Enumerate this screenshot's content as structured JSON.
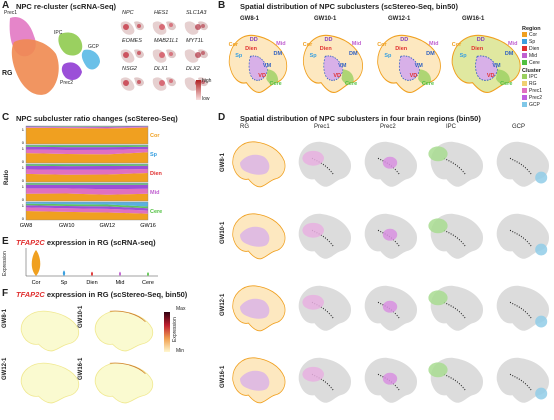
{
  "panels": {
    "A": {
      "letter": "A",
      "title": "NPC re-cluster (scRNA-Seq)",
      "clusters": [
        "Prec1",
        "RG",
        "IPC",
        "Prec2",
        "GCP"
      ],
      "genes": [
        "NPC",
        "HES1",
        "SLC1A3",
        "EOMES",
        "MAB21L1",
        "MYT1L",
        "NSG2",
        "DLX1",
        "DLX2"
      ],
      "scale_high": "high",
      "scale_low": "low"
    },
    "B": {
      "letter": "B",
      "title": "Spatial distribution of NPC subclusters (scStereo-Seq, bin50)",
      "stages": [
        "GW8-1",
        "GW10-1",
        "GW12-1",
        "GW16-1"
      ],
      "region_labels": [
        "DD",
        "Dien",
        "DM",
        "Mid",
        "VD",
        "VM",
        "Cor",
        "Sp",
        "Cere"
      ],
      "region_legend_title": "Region",
      "region_legend": [
        {
          "name": "Cor",
          "color": "#f0a020"
        },
        {
          "name": "Sp",
          "color": "#3aa0e0"
        },
        {
          "name": "Dien",
          "color": "#e03030"
        },
        {
          "name": "Mid",
          "color": "#c060d0"
        },
        {
          "name": "Cere",
          "color": "#50c040"
        }
      ],
      "cluster_legend_title": "Cluster",
      "cluster_legend": [
        {
          "name": "IPC",
          "color": "#9ad060"
        },
        {
          "name": "RG",
          "color": "#f0d070"
        },
        {
          "name": "Prec1",
          "color": "#e070c0"
        },
        {
          "name": "Prec2",
          "color": "#c060e0"
        },
        {
          "name": "GCP",
          "color": "#80c8e8"
        }
      ]
    },
    "C": {
      "letter": "C",
      "title": "NPC subcluster ratio changes (scStereo-Seq)",
      "ylabel": "Ratio"
    },
    "D": {
      "letter": "D",
      "title": "Spatial distribution of NPC subclusters in four brain regions (bin50)",
      "columns": [
        "RG",
        "Prec1",
        "Prec2",
        "IPC",
        "GCP"
      ],
      "rows": [
        "GW8-1",
        "GW10-1",
        "GW12-1",
        "GW16-1"
      ]
    },
    "E": {
      "letter": "E",
      "gene": "TFAP2C",
      "title_rest": " expression in RG (scRNA-seq)",
      "ylabel": "Expression"
    },
    "F": {
      "letter": "F",
      "gene": "TFAP2C",
      "title_rest": " expression in RG (scStereo-Seq, bin50)",
      "rows": [
        "GW8-1",
        "GW10-1",
        "GW12-1",
        "GW16-1"
      ],
      "scale_title": "Expression",
      "scale_max": "Max",
      "scale_min": "Min"
    }
  },
  "chart_data": [
    {
      "type": "area",
      "title": "NPC subcluster ratio changes (scStereo-Seq)",
      "ylabel": "Ratio",
      "categories": [
        "GW8",
        "GW10",
        "GW12",
        "GW16"
      ],
      "facets": [
        "Cor",
        "Sp",
        "Dien",
        "Mid",
        "Cere"
      ],
      "facet_colors": [
        "#f0a020",
        "#3aa0e0",
        "#e03030",
        "#c060d0",
        "#50c040"
      ],
      "ylim": [
        0,
        1
      ],
      "series": [
        {
          "name": "RG",
          "color": "#f0a020"
        },
        {
          "name": "Prec1",
          "color": "#e070c0"
        },
        {
          "name": "Prec2",
          "color": "#9b4fd8"
        },
        {
          "name": "IPC",
          "color": "#5fc060"
        },
        {
          "name": "GCP",
          "color": "#5ab0e0"
        }
      ],
      "facet_values": {
        "Cor": [
          [
            0.9,
            0.88,
            0.86,
            0.92
          ],
          [
            0.04,
            0.05,
            0.06,
            0.03
          ],
          [
            0.03,
            0.03,
            0.04,
            0.03
          ],
          [
            0.02,
            0.03,
            0.03,
            0.01
          ],
          [
            0.01,
            0.01,
            0.01,
            0.01
          ]
        ],
        "Sp": [
          [
            0.55,
            0.5,
            0.48,
            0.6
          ],
          [
            0.2,
            0.22,
            0.25,
            0.18
          ],
          [
            0.15,
            0.16,
            0.15,
            0.12
          ],
          [
            0.08,
            0.1,
            0.1,
            0.08
          ],
          [
            0.02,
            0.02,
            0.02,
            0.02
          ]
        ],
        "Dien": [
          [
            0.45,
            0.4,
            0.42,
            0.5
          ],
          [
            0.25,
            0.28,
            0.27,
            0.22
          ],
          [
            0.2,
            0.2,
            0.2,
            0.18
          ],
          [
            0.08,
            0.1,
            0.09,
            0.08
          ],
          [
            0.02,
            0.02,
            0.02,
            0.02
          ]
        ],
        "Mid": [
          [
            0.4,
            0.42,
            0.35,
            0.4
          ],
          [
            0.3,
            0.28,
            0.3,
            0.28
          ],
          [
            0.2,
            0.2,
            0.25,
            0.22
          ],
          [
            0.08,
            0.08,
            0.08,
            0.08
          ],
          [
            0.02,
            0.02,
            0.02,
            0.02
          ]
        ],
        "Cere": [
          [
            0.5,
            0.45,
            0.42,
            0.35
          ],
          [
            0.2,
            0.2,
            0.2,
            0.18
          ],
          [
            0.12,
            0.13,
            0.14,
            0.12
          ],
          [
            0.08,
            0.1,
            0.1,
            0.1
          ],
          [
            0.1,
            0.12,
            0.14,
            0.25
          ]
        ]
      }
    },
    {
      "type": "violin",
      "title": "TFAP2C expression in RG (scRNA-seq)",
      "ylabel": "Expression",
      "categories": [
        "Cor",
        "Sp",
        "Dien",
        "Mid",
        "Cere"
      ],
      "colors": [
        "#f0a020",
        "#3aa0e0",
        "#e03030",
        "#c060d0",
        "#50c040"
      ],
      "relative_spread": [
        1.0,
        0.15,
        0.1,
        0.1,
        0.08
      ]
    }
  ]
}
